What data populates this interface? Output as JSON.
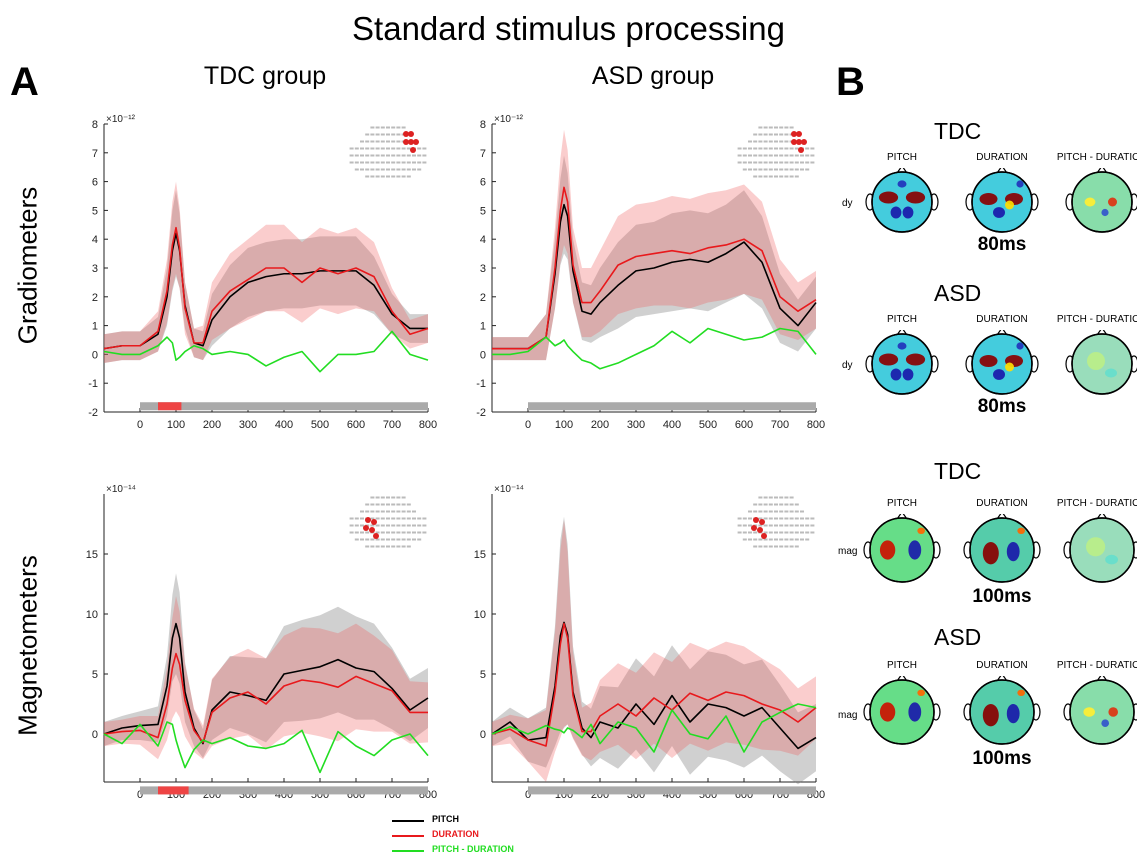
{
  "figure": {
    "title": "Standard stimulus processing",
    "panel_a": "A",
    "panel_b": "B",
    "groups": [
      "TDC group",
      "ASD group"
    ],
    "rows": [
      "Gradiometers",
      "Magnetometers"
    ]
  },
  "legend": {
    "items": [
      {
        "label": "PITCH",
        "color": "#000000"
      },
      {
        "label": "DURATION",
        "color": "#e8191c"
      },
      {
        "label": "PITCH - DURATION",
        "color": "#22dd22"
      }
    ]
  },
  "topomaps": {
    "blocks": [
      {
        "group": "TDC",
        "channel": "dy",
        "latency": "80ms",
        "columns": [
          "PITCH",
          "DURATION",
          "PITCH - DURATION"
        ]
      },
      {
        "group": "ASD",
        "channel": "dy",
        "latency": "80ms",
        "columns": [
          "PITCH",
          "DURATION",
          "PITCH - DURATION"
        ]
      },
      {
        "group": "TDC",
        "channel": "mag",
        "latency": "100ms",
        "columns": [
          "PITCH",
          "DURATION",
          "PITCH - DURATION"
        ]
      },
      {
        "group": "ASD",
        "channel": "mag",
        "latency": "100ms",
        "columns": [
          "PITCH",
          "DURATION",
          "PITCH - DURATION"
        ]
      }
    ]
  },
  "chart_data": [
    {
      "type": "line",
      "id": "grad_tdc",
      "title": "TDC group",
      "ylabel": "Gradiometers",
      "y_scale_label": "×10⁻¹²",
      "xlim": [
        -100,
        800
      ],
      "ylim": [
        -2,
        8
      ],
      "xticks": [
        0,
        100,
        200,
        300,
        400,
        500,
        600,
        700,
        800
      ],
      "yticks": [
        -2,
        -1,
        0,
        1,
        2,
        3,
        4,
        5,
        6,
        7,
        8
      ],
      "significance_bar": {
        "y": -1.8,
        "range": [
          0,
          800
        ],
        "highlight": [
          50,
          115
        ]
      },
      "x": [
        -100,
        -50,
        0,
        50,
        75,
        90,
        100,
        110,
        125,
        150,
        175,
        200,
        250,
        300,
        350,
        400,
        450,
        500,
        550,
        600,
        650,
        700,
        750,
        800
      ],
      "series": [
        {
          "name": "PITCH",
          "values": [
            0.2,
            0.3,
            0.3,
            0.7,
            2.0,
            3.6,
            4.2,
            3.6,
            1.7,
            0.4,
            0.3,
            1.2,
            2.0,
            2.5,
            2.7,
            2.8,
            2.8,
            2.9,
            2.9,
            2.9,
            2.4,
            1.4,
            0.9,
            0.9
          ],
          "band": [
            0.5,
            0.5,
            0.5,
            0.6,
            1.0,
            1.4,
            1.5,
            1.3,
            0.8,
            0.5,
            0.5,
            0.9,
            1.1,
            1.2,
            1.2,
            1.2,
            1.2,
            1.2,
            1.2,
            1.2,
            1.0,
            0.7,
            0.5,
            0.5
          ]
        },
        {
          "name": "DURATION",
          "values": [
            0.2,
            0.3,
            0.3,
            0.8,
            2.2,
            3.8,
            4.4,
            3.7,
            1.6,
            0.4,
            0.4,
            1.5,
            2.2,
            2.6,
            3.0,
            3.0,
            2.5,
            3.0,
            2.8,
            3.0,
            2.7,
            1.5,
            0.7,
            0.9
          ],
          "band": [
            0.5,
            0.5,
            0.5,
            0.7,
            1.1,
            1.5,
            1.6,
            1.4,
            0.9,
            0.5,
            0.6,
            1.0,
            1.3,
            1.4,
            1.5,
            1.5,
            1.4,
            1.4,
            1.4,
            1.4,
            1.2,
            0.8,
            0.5,
            0.5
          ]
        },
        {
          "name": "PITCH - DURATION",
          "values": [
            0.1,
            0.0,
            0.0,
            0.3,
            0.6,
            0.4,
            -0.2,
            -0.1,
            0.1,
            0.3,
            0.2,
            0.0,
            0.1,
            0.0,
            -0.4,
            -0.1,
            0.1,
            -0.6,
            0.0,
            0.0,
            0.1,
            0.8,
            0.0,
            -0.2
          ]
        }
      ]
    },
    {
      "type": "line",
      "id": "grad_asd",
      "title": "ASD group",
      "ylabel": "",
      "y_scale_label": "×10⁻¹²",
      "xlim": [
        -100,
        800
      ],
      "ylim": [
        -2,
        8
      ],
      "xticks": [
        0,
        100,
        200,
        300,
        400,
        500,
        600,
        700,
        800
      ],
      "yticks": [
        -2,
        -1,
        0,
        1,
        2,
        3,
        4,
        5,
        6,
        7,
        8
      ],
      "significance_bar": {
        "y": -1.8,
        "range": [
          0,
          800
        ]
      },
      "x": [
        -100,
        -50,
        0,
        50,
        75,
        90,
        100,
        110,
        125,
        150,
        175,
        200,
        250,
        300,
        350,
        400,
        450,
        500,
        550,
        600,
        650,
        700,
        750,
        800
      ],
      "series": [
        {
          "name": "PITCH",
          "values": [
            0.2,
            0.2,
            0.2,
            0.6,
            2.8,
            4.6,
            5.2,
            4.8,
            2.9,
            1.5,
            1.4,
            1.8,
            2.4,
            2.9,
            3.0,
            3.2,
            3.3,
            3.2,
            3.5,
            3.9,
            3.2,
            1.6,
            1.0,
            1.8
          ],
          "band": [
            0.4,
            0.4,
            0.4,
            0.8,
            1.2,
            1.5,
            1.7,
            1.5,
            1.1,
            1.0,
            1.0,
            1.2,
            1.5,
            1.6,
            1.6,
            1.7,
            1.7,
            1.7,
            1.7,
            1.8,
            1.6,
            1.2,
            0.9,
            0.9
          ]
        },
        {
          "name": "DURATION",
          "values": [
            0.2,
            0.2,
            0.2,
            0.6,
            3.0,
            5.0,
            5.8,
            5.3,
            3.1,
            1.8,
            1.8,
            2.2,
            3.1,
            3.4,
            3.5,
            3.6,
            3.5,
            3.7,
            3.8,
            4.0,
            3.6,
            2.0,
            1.5,
            1.9
          ],
          "band": [
            0.4,
            0.4,
            0.4,
            0.8,
            1.4,
            1.8,
            2.0,
            1.8,
            1.3,
            1.2,
            1.2,
            1.4,
            1.7,
            1.8,
            1.8,
            1.9,
            1.9,
            1.9,
            1.9,
            1.9,
            1.7,
            1.3,
            1.0,
            1.0
          ]
        },
        {
          "name": "PITCH - DURATION",
          "values": [
            0.0,
            0.0,
            0.1,
            0.6,
            0.3,
            0.4,
            0.5,
            0.3,
            0.1,
            -0.2,
            -0.3,
            -0.5,
            -0.3,
            0.0,
            0.3,
            0.8,
            0.4,
            0.9,
            0.7,
            0.5,
            0.6,
            0.9,
            0.8,
            0.0
          ]
        }
      ]
    },
    {
      "type": "line",
      "id": "mag_tdc",
      "title": "",
      "ylabel": "Magnetometers",
      "y_scale_label": "×10⁻¹⁴",
      "xlim": [
        -100,
        800
      ],
      "ylim": [
        -4,
        20
      ],
      "xticks": [
        0,
        100,
        200,
        300,
        400,
        500,
        600,
        700,
        800
      ],
      "yticks": [
        0,
        5,
        10,
        15
      ],
      "significance_bar": {
        "y": -4.7,
        "range": [
          0,
          800
        ],
        "highlight": [
          50,
          135
        ]
      },
      "x": [
        -100,
        -50,
        0,
        50,
        75,
        90,
        100,
        110,
        125,
        150,
        175,
        200,
        250,
        300,
        350,
        400,
        450,
        500,
        550,
        600,
        650,
        700,
        750,
        800
      ],
      "series": [
        {
          "name": "PITCH",
          "values": [
            0.0,
            0.5,
            0.7,
            0.8,
            4.0,
            8.0,
            9.2,
            8.0,
            3.5,
            0.5,
            -0.8,
            2.0,
            3.5,
            3.2,
            2.8,
            5.0,
            5.3,
            5.6,
            6.2,
            5.5,
            5.2,
            3.8,
            2.0,
            3.0
          ],
          "band": [
            1.0,
            1.0,
            1.2,
            1.5,
            2.5,
            3.6,
            4.2,
            3.8,
            2.5,
            1.5,
            1.2,
            2.5,
            3.0,
            3.2,
            3.5,
            4.0,
            4.2,
            4.3,
            4.4,
            4.3,
            4.0,
            3.4,
            2.6,
            2.5
          ]
        },
        {
          "name": "DURATION",
          "values": [
            0.0,
            0.2,
            0.3,
            -0.3,
            2.5,
            5.5,
            6.7,
            5.8,
            2.8,
            0.3,
            -0.7,
            1.8,
            3.0,
            3.5,
            2.5,
            4.0,
            4.5,
            4.3,
            3.9,
            4.8,
            4.2,
            3.6,
            1.8,
            1.8
          ],
          "band": [
            1.0,
            1.0,
            1.2,
            1.8,
            3.0,
            4.2,
            4.8,
            4.4,
            3.0,
            1.8,
            1.4,
            2.8,
            3.4,
            3.6,
            3.8,
            4.2,
            4.4,
            4.5,
            4.5,
            4.4,
            4.0,
            3.4,
            2.6,
            2.5
          ]
        },
        {
          "name": "PITCH - DURATION",
          "values": [
            0.0,
            -0.8,
            0.8,
            -1.0,
            1.0,
            0.8,
            -0.5,
            -1.5,
            -2.8,
            -1.3,
            -0.5,
            -0.8,
            -0.3,
            -1.0,
            -1.2,
            -0.8,
            0.3,
            -3.2,
            0.2,
            -1.0,
            -1.8,
            -0.5,
            0.0,
            -1.8
          ]
        }
      ]
    },
    {
      "type": "line",
      "id": "mag_asd",
      "title": "",
      "ylabel": "",
      "y_scale_label": "×10⁻¹⁴",
      "xlim": [
        -100,
        800
      ],
      "ylim": [
        -4,
        20
      ],
      "xticks": [
        0,
        100,
        200,
        300,
        400,
        500,
        600,
        700,
        800
      ],
      "yticks": [
        0,
        5,
        10,
        15
      ],
      "significance_bar": {
        "y": -4.7,
        "range": [
          0,
          800
        ]
      },
      "x": [
        -100,
        -50,
        0,
        50,
        75,
        90,
        100,
        110,
        125,
        150,
        175,
        200,
        250,
        300,
        350,
        400,
        450,
        500,
        550,
        600,
        650,
        700,
        750,
        800
      ],
      "series": [
        {
          "name": "PITCH",
          "values": [
            0.0,
            1.0,
            -0.5,
            -0.3,
            4.0,
            8.2,
            9.3,
            8.3,
            3.5,
            0.5,
            -0.3,
            1.0,
            0.5,
            2.5,
            0.8,
            3.2,
            1.0,
            2.5,
            2.2,
            1.5,
            2.2,
            0.5,
            -1.2,
            -0.3
          ],
          "band": [
            1.0,
            1.2,
            1.8,
            2.5,
            5.0,
            8.0,
            8.8,
            7.5,
            3.8,
            2.2,
            2.4,
            3.0,
            3.4,
            3.8,
            4.0,
            4.2,
            4.4,
            4.4,
            4.4,
            4.3,
            4.0,
            3.6,
            3.0,
            2.8
          ]
        },
        {
          "name": "DURATION",
          "values": [
            0.0,
            0.4,
            -0.5,
            -1.0,
            3.5,
            7.5,
            9.2,
            8.0,
            3.2,
            0.2,
            0.2,
            1.5,
            2.5,
            1.5,
            3.0,
            2.0,
            3.4,
            2.8,
            3.5,
            3.2,
            2.5,
            2.0,
            1.0,
            2.2
          ],
          "band": [
            1.0,
            1.2,
            1.8,
            3.0,
            5.0,
            7.8,
            8.6,
            7.2,
            3.6,
            2.0,
            2.4,
            3.0,
            3.4,
            3.6,
            3.8,
            4.0,
            4.2,
            4.2,
            4.2,
            4.1,
            3.8,
            3.4,
            2.8,
            2.6
          ]
        },
        {
          "name": "PITCH - DURATION",
          "values": [
            0.0,
            0.6,
            0.0,
            0.7,
            0.4,
            0.3,
            0.1,
            0.5,
            0.3,
            -0.3,
            0.8,
            -0.8,
            1.0,
            0.5,
            -1.5,
            2.0,
            0.0,
            -0.4,
            1.5,
            -1.5,
            1.0,
            1.8,
            2.5,
            2.2
          ]
        }
      ]
    }
  ]
}
